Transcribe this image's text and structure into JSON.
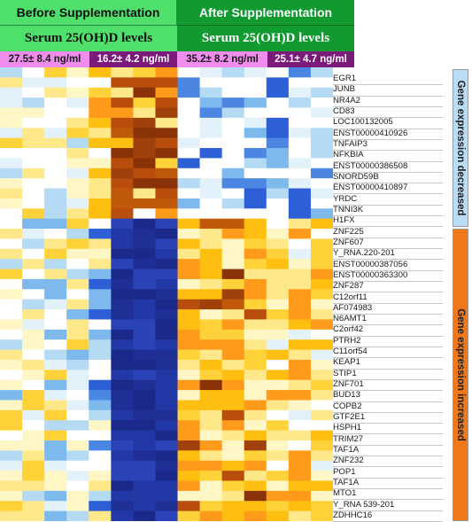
{
  "header": {
    "before_label": "Before Supplementation",
    "after_label": "After Supplementation",
    "serum_before": "Serum 25(OH)D levels",
    "serum_after": "Serum 25(OH)D levels",
    "level_1": "27.5± 8.4 ng/ml",
    "level_2": "16.2± 4.2 ng/ml",
    "level_3": "35.2± 8.2 ng/ml",
    "level_4": "25.1± 4.7 ng/ml"
  },
  "genes": [
    "EGR1",
    "JUNB",
    "NR4A2",
    "CD83",
    "LOC100132005",
    "ENST00000410926",
    "TNFAIP3",
    "NFKBIA",
    "ENST00000386508",
    "SNORD59B",
    "ENST00000410897",
    "YRDC",
    "TNNI3K",
    "H1FX",
    "ZNF225",
    "ZNF607",
    "Y_RNA.220-201",
    "ENST00000387056",
    "ENST00000363300",
    "ZNF287",
    "C12orf11",
    "AF074983",
    "N6AMT1",
    "C2orf42",
    "PTRH2",
    "C11orf54",
    "KEAP1",
    "STIP1",
    "ZNF701",
    "BUD13",
    "COPB2",
    "GTF2E1",
    "HSPH1",
    "TRIM27",
    "TAF1A",
    "ZNF232",
    "POP1",
    "TAF1A",
    "MTO1",
    "Y_RNA 539-201",
    "ZDHHC16"
  ],
  "groups": {
    "decreased": "Gene expression decreased",
    "increased": "Gene expression increased"
  },
  "colors": {
    "before_header": "#4ee06a",
    "after_header": "#109a30",
    "level_pink": "#ef8ced",
    "level_purple": "#7b1a7a",
    "decreased_bar": "#b9ddf6",
    "increased_bar": "#f07818"
  }
}
